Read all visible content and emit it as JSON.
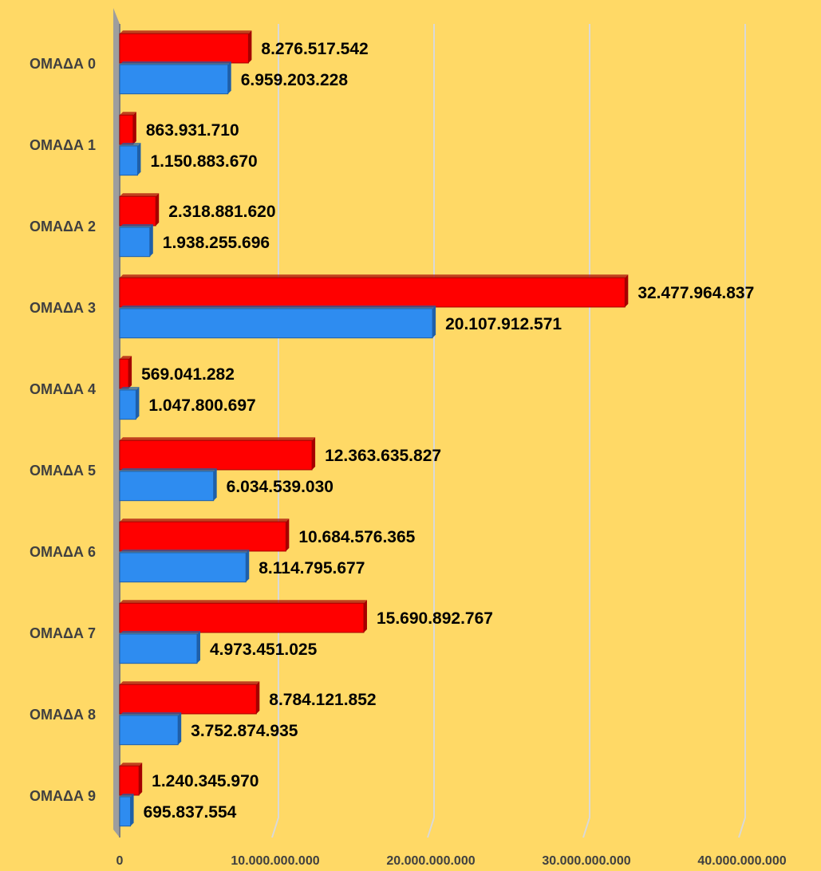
{
  "chart_data": {
    "type": "bar",
    "orientation": "horizontal",
    "categories": [
      "ΟΜΑΔΑ 0",
      "ΟΜΑΔΑ 1",
      "ΟΜΑΔΑ 2",
      "ΟΜΑΔΑ 3",
      "ΟΜΑΔΑ 4",
      "ΟΜΑΔΑ 5",
      "ΟΜΑΔΑ 6",
      "ΟΜΑΔΑ 7",
      "ΟΜΑΔΑ 8",
      "ΟΜΑΔΑ 9"
    ],
    "series": [
      {
        "color": "#FF0000",
        "values": [
          8276517542,
          863931710,
          2318881620,
          32477964837,
          569041282,
          12363635827,
          10684576365,
          15690892767,
          8784121852,
          1240345970
        ],
        "value_labels": [
          "8.276.517.542",
          "863.931.710",
          "2.318.881.620",
          "32.477.964.837",
          "569.041.282",
          "12.363.635.827",
          "10.684.576.365",
          "15.690.892.767",
          "8.784.121.852",
          "1.240.345.970"
        ]
      },
      {
        "color": "#2E8CF0",
        "values": [
          6959203228,
          1150883670,
          1938255696,
          20107912571,
          1047800697,
          6034539030,
          8114795677,
          4973451025,
          3752874935,
          695837554
        ],
        "value_labels": [
          "6.959.203.228",
          "1.150.883.670",
          "1.938.255.696",
          "20.107.912.571",
          "1.047.800.697",
          "6.034.539.030",
          "8.114.795.677",
          "4.973.451.025",
          "3.752.874.935",
          "695.837.554"
        ]
      }
    ],
    "xlim": [
      0,
      40000000000
    ],
    "xticks": [
      0,
      {
        "value": 10000000000,
        "label": "10.000.000.000"
      },
      {
        "value": 20000000000,
        "label": "20.000.000.000"
      },
      {
        "value": 30000000000,
        "label": "30.000.000.000"
      },
      {
        "value": 40000000000,
        "label": "40.000.000.000"
      }
    ],
    "grid": true
  }
}
